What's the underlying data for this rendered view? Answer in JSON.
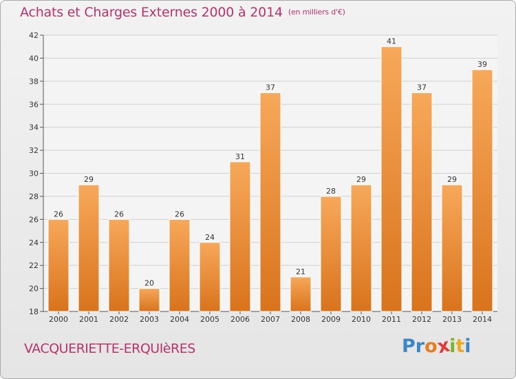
{
  "title": "Achats et Charges Externes 2000 à 2014",
  "subtitle": "(en milliers d'€)",
  "commune": "VACQUERIETTE-ERQUIèRES",
  "logo": {
    "letters": [
      {
        "ch": "P",
        "color": "#3a87c8"
      },
      {
        "ch": "r",
        "color": "#3a87c8"
      },
      {
        "ch": "o",
        "color": "#e87d1e"
      },
      {
        "ch": "x",
        "color": "#e03a3a"
      },
      {
        "ch": "i",
        "color": "#74b72e"
      },
      {
        "ch": "t",
        "color": "#f0a91b"
      },
      {
        "ch": "i",
        "color": "#3a87c8"
      }
    ]
  },
  "colors": {
    "bar_light": "#f7a85a",
    "bar_dark": "#d9731c",
    "grid": "#cfcfcf",
    "title": "#b8336a"
  },
  "chart_data": {
    "type": "bar",
    "categories": [
      "2000",
      "2001",
      "2002",
      "2003",
      "2004",
      "2005",
      "2006",
      "2007",
      "2008",
      "2009",
      "2010",
      "2011",
      "2012",
      "2013",
      "2014"
    ],
    "values": [
      26,
      29,
      26,
      20,
      26,
      24,
      31,
      37,
      21,
      28,
      29,
      41,
      37,
      29,
      39
    ],
    "ylim": [
      18,
      42
    ],
    "yticks": [
      18,
      20,
      22,
      24,
      26,
      28,
      30,
      32,
      34,
      36,
      38,
      40,
      42
    ],
    "grid": true,
    "data_labels": true
  }
}
